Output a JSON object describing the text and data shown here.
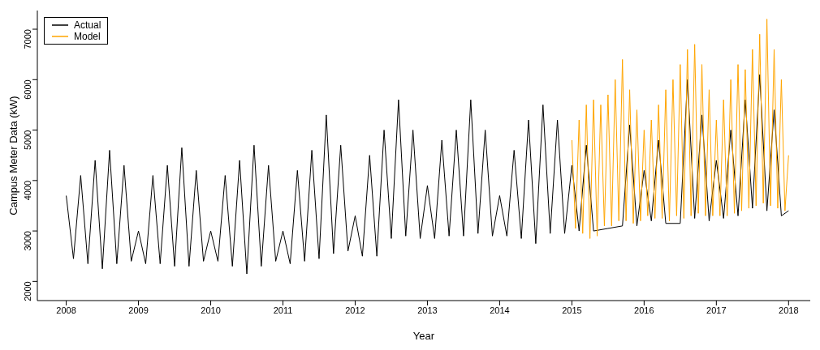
{
  "chart_data": {
    "type": "line",
    "xlabel": "Year",
    "ylabel": "Campus Meter Data (kW)",
    "xlim": [
      2007.6,
      2018.3
    ],
    "xticks": [
      2008,
      2009,
      2010,
      2011,
      2012,
      2013,
      2014,
      2015,
      2016,
      2017,
      2018
    ],
    "ylim": [
      1620,
      7370
    ],
    "yticks": [
      2000,
      3000,
      4000,
      5000,
      6000,
      7000
    ],
    "grid": false,
    "legend": "top left",
    "marker": "none",
    "line_style": "solid",
    "series": [
      {
        "name": "Actual",
        "color": "#000000",
        "x": [
          2008.0,
          2008.1,
          2008.2,
          2008.3,
          2008.4,
          2008.5,
          2008.6,
          2008.7,
          2008.8,
          2008.9,
          2009.0,
          2009.1,
          2009.2,
          2009.3,
          2009.4,
          2009.5,
          2009.6,
          2009.7,
          2009.8,
          2009.9,
          2010.0,
          2010.1,
          2010.2,
          2010.3,
          2010.4,
          2010.5,
          2010.6,
          2010.7,
          2010.8,
          2010.9,
          2011.0,
          2011.1,
          2011.2,
          2011.3,
          2011.4,
          2011.5,
          2011.6,
          2011.7,
          2011.8,
          2011.9,
          2012.0,
          2012.1,
          2012.2,
          2012.3,
          2012.4,
          2012.5,
          2012.6,
          2012.7,
          2012.8,
          2012.9,
          2013.0,
          2013.1,
          2013.2,
          2013.3,
          2013.4,
          2013.5,
          2013.6,
          2013.7,
          2013.8,
          2013.9,
          2014.0,
          2014.1,
          2014.2,
          2014.3,
          2014.4,
          2014.5,
          2014.6,
          2014.7,
          2014.8,
          2014.9,
          2015.0,
          2015.1,
          2015.2,
          2015.3,
          2015.4,
          2015.5,
          2015.6,
          2015.7,
          2015.8,
          2015.9,
          2016.0,
          2016.1,
          2016.2,
          2016.3,
          2016.4,
          2016.5,
          2016.6,
          2016.7,
          2016.8,
          2016.9,
          2017.0,
          2017.1,
          2017.2,
          2017.3,
          2017.4,
          2017.5,
          2017.6,
          2017.7,
          2017.8,
          2017.9,
          2018.0
        ],
        "values": [
          3700,
          2450,
          4100,
          2350,
          4400,
          2250,
          4600,
          2350,
          4300,
          2400,
          3000,
          2350,
          4100,
          2350,
          4300,
          2300,
          4650,
          2300,
          4200,
          2400,
          3000,
          2400,
          4100,
          2300,
          4400,
          2150,
          4700,
          2300,
          4300,
          2400,
          3000,
          2350,
          4200,
          2400,
          4600,
          2450,
          5300,
          2550,
          4700,
          2600,
          3300,
          2500,
          4500,
          2500,
          5000,
          2850,
          5600,
          2900,
          5000,
          2850,
          3900,
          2850,
          4800,
          2900,
          5000,
          2900,
          5600,
          2950,
          5000,
          2900,
          3700,
          2900,
          4600,
          2850,
          5200,
          2750,
          5500,
          2950,
          5200,
          2950,
          4300,
          3000,
          4700,
          3000,
          null,
          3050,
          null,
          3100,
          5100,
          3100,
          4200,
          3200,
          4800,
          3150,
          null,
          3150,
          6000,
          3250,
          5300,
          3200,
          4400,
          3250,
          5000,
          3300,
          5600,
          3450,
          6100,
          3400,
          5400,
          3300,
          3400
        ]
      },
      {
        "name": "Model",
        "color": "#ffa500",
        "x": [
          2015.0,
          2015.05,
          2015.1,
          2015.15,
          2015.2,
          2015.25,
          2015.3,
          2015.35,
          2015.4,
          2015.45,
          2015.5,
          2015.55,
          2015.6,
          2015.65,
          2015.7,
          2015.75,
          2015.8,
          2015.85,
          2015.9,
          2015.95,
          2016.0,
          2016.05,
          2016.1,
          2016.15,
          2016.2,
          2016.25,
          2016.3,
          2016.35,
          2016.4,
          2016.45,
          2016.5,
          2016.55,
          2016.6,
          2016.65,
          2016.7,
          2016.75,
          2016.8,
          2016.85,
          2016.9,
          2016.95,
          2017.0,
          2017.05,
          2017.1,
          2017.15,
          2017.2,
          2017.25,
          2017.3,
          2017.35,
          2017.4,
          2017.45,
          2017.5,
          2017.55,
          2017.6,
          2017.65,
          2017.7,
          2017.75,
          2017.8,
          2017.85,
          2017.9,
          2017.95,
          2018.0
        ],
        "values": [
          4800,
          3050,
          5200,
          2950,
          5500,
          2850,
          5600,
          2900,
          5500,
          3100,
          5700,
          3100,
          6000,
          3200,
          6400,
          3200,
          5800,
          3150,
          5400,
          3200,
          5000,
          3300,
          5200,
          3250,
          5500,
          3250,
          5800,
          3200,
          6000,
          3300,
          6300,
          3250,
          6600,
          3300,
          6700,
          3350,
          6300,
          3300,
          5800,
          3300,
          5200,
          3300,
          5600,
          3300,
          6000,
          3350,
          6300,
          3400,
          6200,
          3450,
          6600,
          3500,
          6900,
          3550,
          7200,
          3500,
          6600,
          3450,
          6000,
          3400,
          4500
        ]
      }
    ]
  }
}
